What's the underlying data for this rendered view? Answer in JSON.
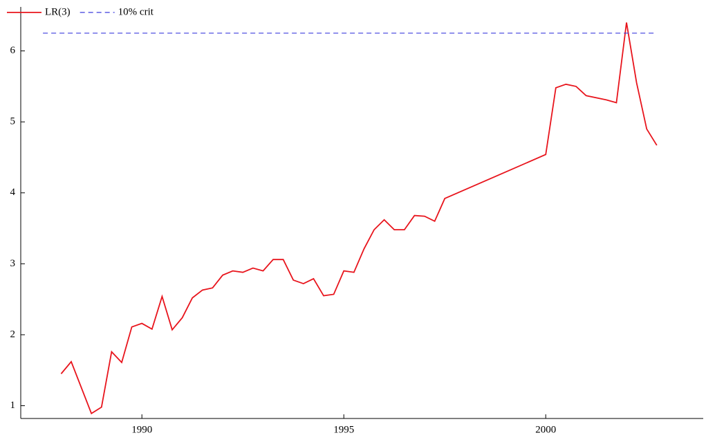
{
  "chart_data": {
    "type": "line",
    "series": [
      {
        "name": "LR(3)",
        "color": "#e8141c",
        "dash": false,
        "x": [
          1988,
          1988.25,
          1988.75,
          1989,
          1989.25,
          1989.5,
          1989.75,
          1990,
          1990.25,
          1990.5,
          1990.75,
          1991,
          1991.25,
          1991.5,
          1991.75,
          1992,
          1992.25,
          1992.5,
          1992.75,
          1993,
          1993.25,
          1993.5,
          1993.75,
          1994,
          1994.25,
          1994.5,
          1994.75,
          1995,
          1995.25,
          1995.5,
          1995.75,
          1996,
          1996.25,
          1996.5,
          1996.75,
          1997,
          1997.25,
          1997.5,
          2000,
          2000.25,
          2000.5,
          2000.75,
          2001,
          2001.5,
          2001.75,
          2002,
          2002.25,
          2002.5,
          2002.75
        ],
        "values": [
          1.45,
          1.62,
          0.89,
          0.98,
          1.76,
          1.61,
          2.11,
          2.16,
          2.08,
          2.54,
          2.07,
          2.24,
          2.52,
          2.63,
          2.66,
          2.84,
          2.9,
          2.88,
          2.94,
          2.9,
          3.06,
          3.06,
          2.77,
          2.72,
          2.79,
          2.55,
          2.57,
          2.9,
          2.88,
          3.21,
          3.48,
          3.62,
          3.48,
          3.48,
          3.68,
          3.67,
          3.6,
          3.92,
          4.54,
          5.48,
          5.53,
          5.5,
          5.37,
          5.31,
          5.27,
          6.4,
          5.55,
          4.9,
          4.67
        ]
      },
      {
        "name": "10% crit",
        "color": "#3a3adc",
        "dash": true,
        "x": [
          1987.55,
          2002.75
        ],
        "values": [
          6.25,
          6.25
        ]
      }
    ],
    "xlim": [
      1987,
      2003.9
    ],
    "xticks": [
      1990,
      1995,
      2000
    ],
    "ylim": [
      0.82,
      6.62
    ],
    "yticks": [
      1,
      2,
      3,
      4,
      5,
      6
    ],
    "legend": "top-left"
  }
}
